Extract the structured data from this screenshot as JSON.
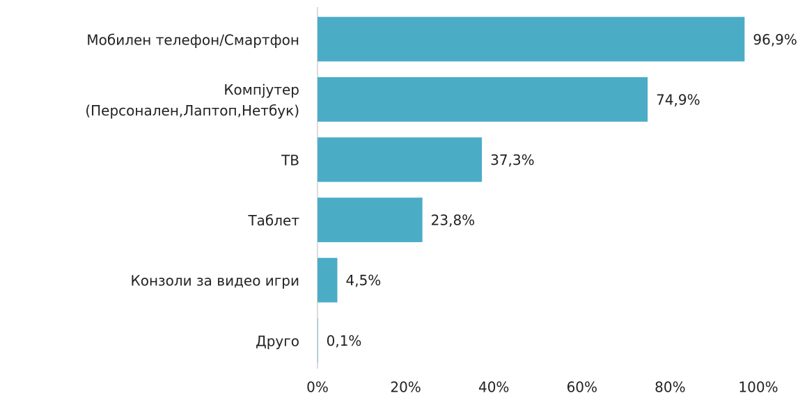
{
  "chart_data": {
    "type": "bar",
    "orientation": "horizontal",
    "categories": [
      "Мобилен телефон/Смартфон",
      "Компјутер\n(Персонален,Лаптоп,Нетбук)",
      "ТВ",
      "Таблет",
      "Конзоли за видео игри",
      "Друго"
    ],
    "values": [
      96.9,
      74.9,
      37.3,
      23.8,
      4.5,
      0.1
    ],
    "value_labels": [
      "96,9%",
      "74,9%",
      "37,3%",
      "23,8%",
      "4,5%",
      "0,1%"
    ],
    "color": "#4bacc6",
    "xlim": [
      0,
      100
    ],
    "xticks": [
      {
        "value": 0,
        "label": "0%"
      },
      {
        "value": 20,
        "label": "20%"
      },
      {
        "value": 40,
        "label": "40%"
      },
      {
        "value": 60,
        "label": "60%"
      },
      {
        "value": 80,
        "label": "80%"
      },
      {
        "value": 100,
        "label": "100%"
      }
    ],
    "grid": false
  }
}
